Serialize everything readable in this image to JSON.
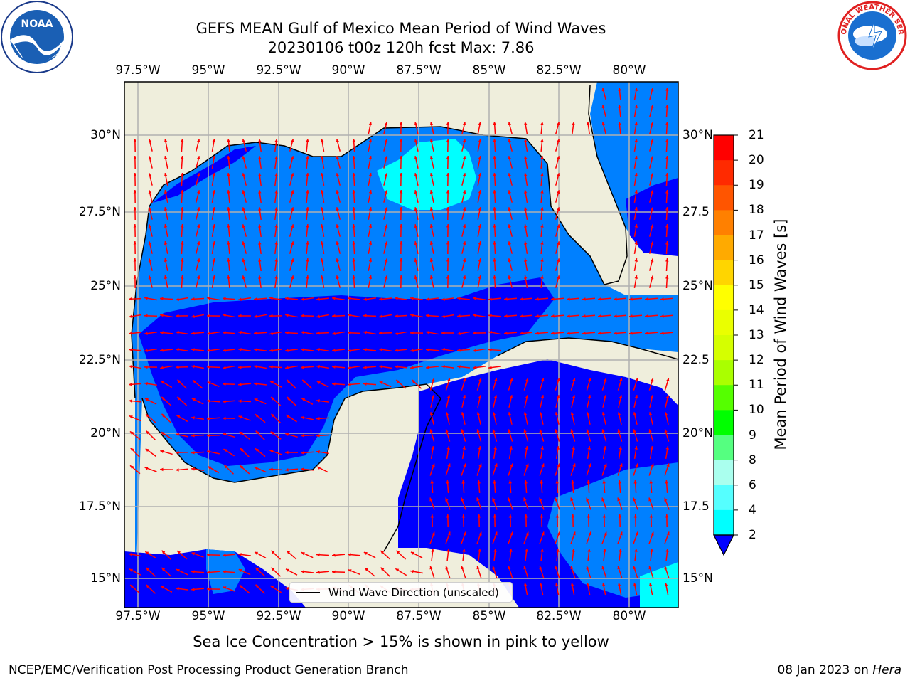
{
  "title": {
    "line1": "GEFS MEAN Gulf of Mexico Mean Period of Wind Waves",
    "line2": "20230106 t00z 120h fcst   Max: 7.86"
  },
  "axes": {
    "lon_ticks": [
      "97.5°W",
      "95°W",
      "92.5°W",
      "90°W",
      "87.5°W",
      "85°W",
      "82.5°W",
      "80°W"
    ],
    "lat_ticks_left": [
      "30°N",
      "27.5°N",
      "25°N",
      "22.5°N",
      "20°N",
      "17.5°N",
      "15°N"
    ],
    "lat_ticks_right": [
      "30°N",
      "27.5",
      "25°N",
      "22.5",
      "20°N",
      "17.5",
      "15°N"
    ]
  },
  "colorbar": {
    "label": "Mean Period of Wind Waves [s]",
    "ticks": [
      "21",
      "20",
      "19",
      "18",
      "17",
      "16",
      "15",
      "14",
      "13",
      "12",
      "11",
      "10",
      "9",
      "8",
      "6",
      "4",
      "2"
    ],
    "colors": [
      "#ff0000",
      "#ff2a00",
      "#ff5500",
      "#ff8000",
      "#ffaa00",
      "#ffd500",
      "#ffff00",
      "#eaff00",
      "#d5ff00",
      "#aaff00",
      "#55ff00",
      "#00ff00",
      "#55ff80",
      "#aaffee",
      "#55ffff",
      "#00ffff",
      "#0080ff"
    ],
    "extend_color": "#0000ff"
  },
  "legend": {
    "label": "Wind Wave Direction (unscaled)"
  },
  "note": "Sea Ice Concentration > 15% is shown in pink to yellow",
  "footer": {
    "left": "NCEP/EMC/Verification Post Processing Product Generation Branch",
    "date": "08 Jan 2023 on ",
    "host": "Hera"
  },
  "logos": {
    "left": "NOAA",
    "right_ring": "NATIONAL WEATHER SERVICE"
  },
  "map_colors": {
    "land": "#efeedc",
    "deep_blue": "#0000ff",
    "mid_blue": "#0080ff",
    "cyan": "#00ffff",
    "light_cyan": "#55ffff",
    "arrow": "#ff0000",
    "grid": "#b0b0b0"
  }
}
